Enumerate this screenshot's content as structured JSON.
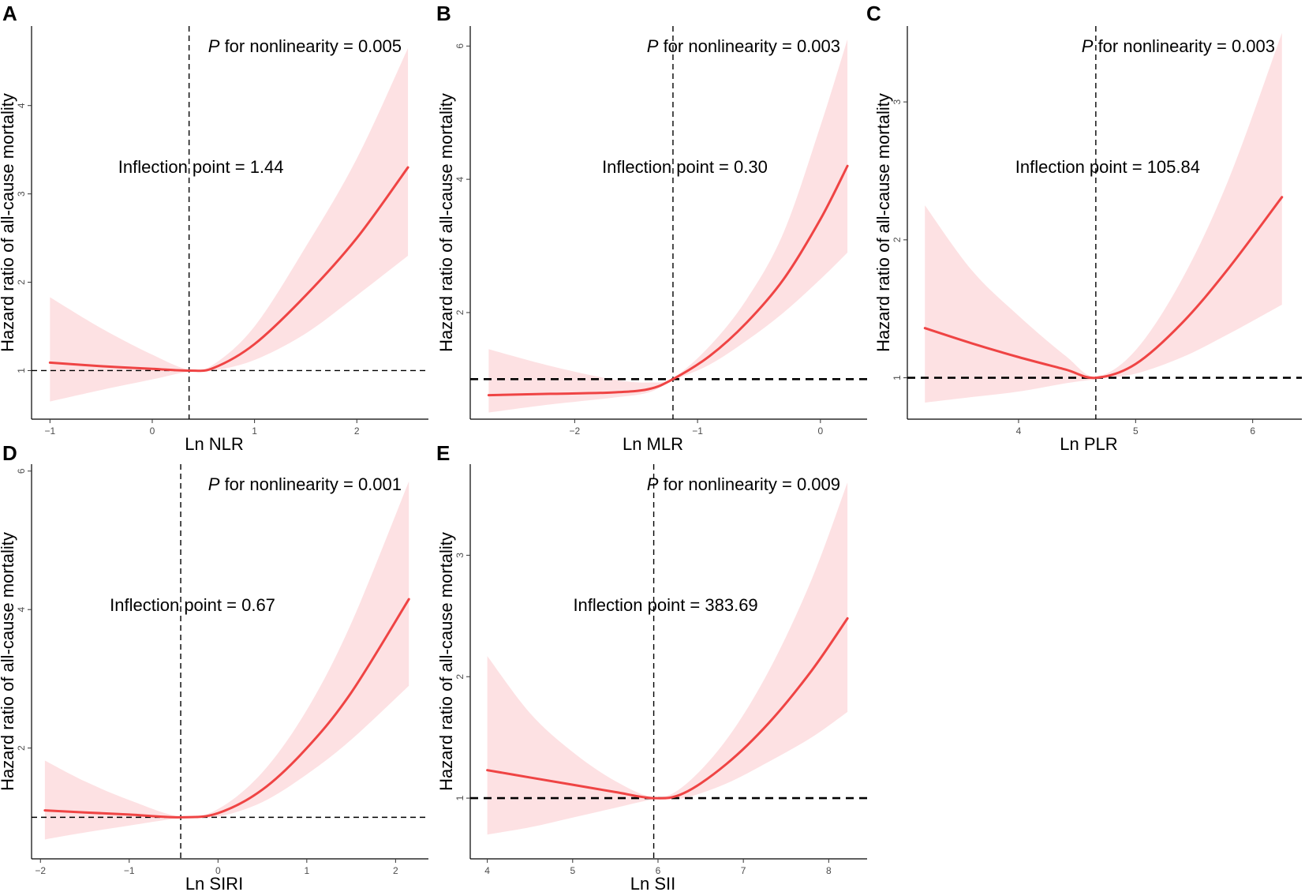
{
  "figure": {
    "y_axis_label": "Hazard ratio of all-cause mortality",
    "p_prefix": "P",
    "band_color": "#fde1e3",
    "line_color": "#ef4444",
    "ref_line_color": "#000000"
  },
  "chart_data": [
    {
      "type": "line",
      "panel": "A",
      "xlabel": "Ln NLR",
      "ylabel": "Hazard ratio of all-cause mortality",
      "xlim": [
        -1.18,
        2.7
      ],
      "ylim": [
        0.45,
        4.9
      ],
      "xticks": [
        -1,
        0,
        1,
        2
      ],
      "xtick_labels": [
        "−1",
        "0",
        "1",
        "2"
      ],
      "yticks": [
        1,
        2,
        3,
        4
      ],
      "ytick_labels": [
        "1",
        "2",
        "3",
        "4"
      ],
      "inflection_x": 0.36,
      "ref_y": 1,
      "ref_style": "thin",
      "p_text": " for nonlinearity = 0.005",
      "inflection_text": "Inflection point = 1.44",
      "series": [
        {
          "name": "HR",
          "x": [
            -1,
            -0.5,
            0,
            0.36,
            0.6,
            1.0,
            1.5,
            2.0,
            2.5
          ],
          "values": [
            1.09,
            1.05,
            1.02,
            1.0,
            1.03,
            1.3,
            1.85,
            2.5,
            3.3
          ]
        },
        {
          "name": "CI lower",
          "x": [
            -1,
            -0.5,
            0,
            0.36,
            0.6,
            1.0,
            1.5,
            2.0,
            2.5
          ],
          "values": [
            0.65,
            0.78,
            0.9,
            0.99,
            1.0,
            1.12,
            1.42,
            1.85,
            2.3
          ]
        },
        {
          "name": "CI upper",
          "x": [
            -1,
            -0.5,
            0,
            0.36,
            0.6,
            1.0,
            1.5,
            2.0,
            2.5
          ],
          "values": [
            1.83,
            1.48,
            1.18,
            1.01,
            1.07,
            1.5,
            2.4,
            3.4,
            4.65
          ]
        }
      ]
    },
    {
      "type": "line",
      "panel": "B",
      "xlabel": "Ln MLR",
      "ylabel": "Hazard ratio of all-cause mortality",
      "xlim": [
        -2.85,
        0.38
      ],
      "ylim": [
        0.4,
        6.3
      ],
      "xticks": [
        -2,
        -1,
        0
      ],
      "xtick_labels": [
        "−2",
        "−1",
        "0"
      ],
      "yticks": [
        2,
        4,
        6
      ],
      "ytick_labels": [
        "2",
        "4",
        "6"
      ],
      "inflection_x": -1.2,
      "ref_y": 1,
      "ref_style": "thick",
      "p_text": " for nonlinearity = 0.003",
      "inflection_text": "Inflection point = 0.30",
      "series": [
        {
          "name": "HR",
          "x": [
            -2.7,
            -2.2,
            -1.7,
            -1.4,
            -1.2,
            -0.9,
            -0.6,
            -0.3,
            0,
            0.22
          ],
          "values": [
            0.76,
            0.78,
            0.8,
            0.85,
            1.0,
            1.35,
            1.85,
            2.5,
            3.4,
            4.2
          ]
        },
        {
          "name": "CI lower",
          "x": [
            -2.7,
            -2.2,
            -1.7,
            -1.4,
            -1.2,
            -0.9,
            -0.6,
            -0.3,
            0,
            0.22
          ],
          "values": [
            0.5,
            0.62,
            0.72,
            0.8,
            0.98,
            1.22,
            1.58,
            2.0,
            2.5,
            2.9
          ]
        },
        {
          "name": "CI upper",
          "x": [
            -2.7,
            -2.2,
            -1.7,
            -1.4,
            -1.2,
            -0.9,
            -0.6,
            -0.3,
            0,
            0.22
          ],
          "values": [
            1.45,
            1.2,
            1.0,
            0.95,
            1.02,
            1.5,
            2.2,
            3.2,
            4.8,
            6.1
          ]
        }
      ]
    },
    {
      "type": "line",
      "panel": "C",
      "xlabel": "Ln PLR",
      "ylabel": "Hazard ratio of all-cause mortality",
      "xlim": [
        3.05,
        6.42
      ],
      "ylim": [
        0.7,
        3.55
      ],
      "xticks": [
        4,
        5,
        6
      ],
      "xtick_labels": [
        "4",
        "5",
        "6"
      ],
      "yticks": [
        1,
        2,
        3
      ],
      "ytick_labels": [
        "1",
        "2",
        "3"
      ],
      "inflection_x": 4.66,
      "ref_y": 1,
      "ref_style": "thick",
      "p_text": " for nonlinearity = 0.003",
      "inflection_text": "Inflection point = 105.84",
      "series": [
        {
          "name": "HR",
          "x": [
            3.2,
            3.6,
            4.0,
            4.4,
            4.66,
            5.0,
            5.4,
            5.8,
            6.25
          ],
          "values": [
            1.36,
            1.25,
            1.15,
            1.06,
            1.0,
            1.1,
            1.4,
            1.8,
            2.31
          ]
        },
        {
          "name": "CI lower",
          "x": [
            3.2,
            3.6,
            4.0,
            4.4,
            4.66,
            5.0,
            5.4,
            5.8,
            6.25
          ],
          "values": [
            0.82,
            0.86,
            0.9,
            0.96,
            0.99,
            1.03,
            1.15,
            1.32,
            1.53
          ]
        },
        {
          "name": "CI upper",
          "x": [
            3.2,
            3.6,
            4.0,
            4.4,
            4.66,
            5.0,
            5.4,
            5.8,
            6.25
          ],
          "values": [
            2.25,
            1.78,
            1.45,
            1.16,
            1.01,
            1.2,
            1.72,
            2.45,
            3.5
          ]
        }
      ]
    },
    {
      "type": "line",
      "panel": "D",
      "xlabel": "Ln SIRI",
      "ylabel": "Hazard ratio of all-cause mortality",
      "xlim": [
        -2.1,
        2.37
      ],
      "ylim": [
        0.4,
        6.1
      ],
      "xticks": [
        -2,
        -1,
        0,
        1,
        2
      ],
      "xtick_labels": [
        "−2",
        "−1",
        "0",
        "1",
        "2"
      ],
      "yticks": [
        2,
        4,
        6
      ],
      "ytick_labels": [
        "2",
        "4",
        "6"
      ],
      "inflection_x": -0.42,
      "ref_y": 1,
      "ref_style": "thin",
      "p_text": " for nonlinearity = 0.001",
      "inflection_text": "Inflection point = 0.67",
      "series": [
        {
          "name": "HR",
          "x": [
            -1.95,
            -1.5,
            -1.0,
            -0.42,
            0,
            0.5,
            1.0,
            1.5,
            2.15
          ],
          "values": [
            1.1,
            1.07,
            1.04,
            1.0,
            1.06,
            1.4,
            2.0,
            2.8,
            4.15
          ]
        },
        {
          "name": "CI lower",
          "x": [
            -1.95,
            -1.5,
            -1.0,
            -0.42,
            0,
            0.5,
            1.0,
            1.5,
            2.15
          ],
          "values": [
            0.68,
            0.78,
            0.88,
            0.99,
            1.01,
            1.22,
            1.62,
            2.12,
            2.9
          ]
        },
        {
          "name": "CI upper",
          "x": [
            -1.95,
            -1.5,
            -1.0,
            -0.42,
            0,
            0.5,
            1.0,
            1.5,
            2.15
          ],
          "values": [
            1.82,
            1.52,
            1.25,
            1.01,
            1.12,
            1.65,
            2.55,
            3.8,
            5.85
          ]
        }
      ]
    },
    {
      "type": "line",
      "panel": "E",
      "xlabel": "Ln SII",
      "ylabel": "Hazard ratio of all-cause mortality",
      "xlim": [
        3.8,
        8.45
      ],
      "ylim": [
        0.5,
        3.75
      ],
      "xticks": [
        4,
        5,
        6,
        7,
        8
      ],
      "xtick_labels": [
        "4",
        "5",
        "6",
        "7",
        "8"
      ],
      "yticks": [
        1,
        2,
        3
      ],
      "ytick_labels": [
        "1",
        "2",
        "3"
      ],
      "inflection_x": 5.95,
      "ref_y": 1,
      "ref_style": "thick",
      "p_text": " for nonlinearity = 0.009",
      "inflection_text": "Inflection point = 383.69",
      "series": [
        {
          "name": "HR",
          "x": [
            4.0,
            4.5,
            5.0,
            5.5,
            5.95,
            6.3,
            6.8,
            7.3,
            7.8,
            8.22
          ],
          "values": [
            1.23,
            1.17,
            1.11,
            1.05,
            1.0,
            1.04,
            1.28,
            1.62,
            2.05,
            2.48
          ]
        },
        {
          "name": "CI lower",
          "x": [
            4.0,
            4.5,
            5.0,
            5.5,
            5.95,
            6.3,
            6.8,
            7.3,
            7.8,
            8.22
          ],
          "values": [
            0.7,
            0.76,
            0.84,
            0.92,
            0.99,
            1.0,
            1.12,
            1.3,
            1.5,
            1.71
          ]
        },
        {
          "name": "CI upper",
          "x": [
            4.0,
            4.5,
            5.0,
            5.5,
            5.95,
            6.3,
            6.8,
            7.3,
            7.8,
            8.22
          ],
          "values": [
            2.17,
            1.7,
            1.38,
            1.14,
            1.01,
            1.1,
            1.48,
            2.05,
            2.8,
            3.6
          ]
        }
      ]
    }
  ]
}
